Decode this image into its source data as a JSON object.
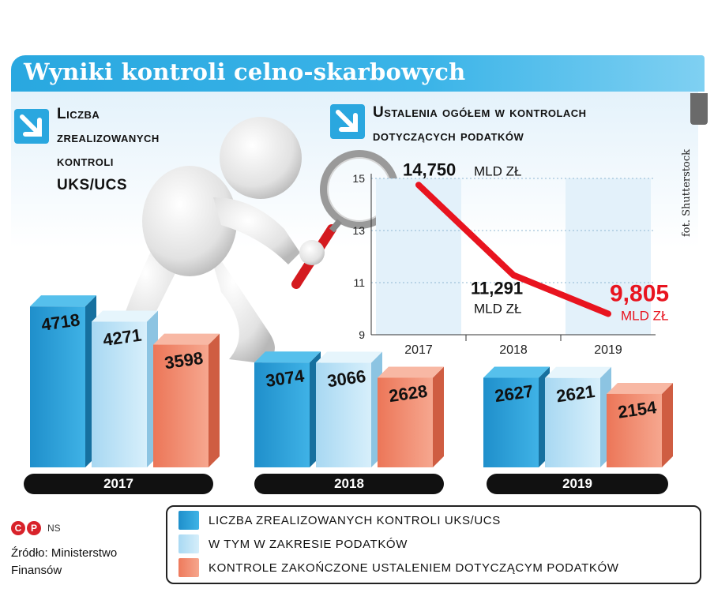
{
  "header": {
    "title": "Wyniki kontroli celno-skarbowych"
  },
  "photo_credit": "fot. Shutterstock",
  "left_panel": {
    "subtitle_lines": [
      "Liczba",
      "zrealizowanych",
      "kontroli",
      "UKS/UCS"
    ]
  },
  "right_panel": {
    "subtitle_lines": [
      "Ustalenia ogółem w kontrolach",
      "dotyczących podatków"
    ]
  },
  "colors": {
    "accent": "#29a8e0",
    "line": "#e8141f",
    "dark_blue": "#2a9fd6",
    "light_blue": "#bfe3f6",
    "salmon": "#f2876b"
  },
  "chart_data": [
    {
      "type": "bar",
      "categories": [
        "2017",
        "2018",
        "2019"
      ],
      "series": [
        {
          "name": "Liczba zrealizowanych kontroli UKS/UCS",
          "values": [
            4718,
            3074,
            2627
          ]
        },
        {
          "name": "W tym w zakresie podatków",
          "values": [
            4271,
            3066,
            2621
          ]
        },
        {
          "name": "Kontrole zakończone ustaleniem dotyczącym podatków",
          "values": [
            3598,
            2628,
            2154
          ]
        }
      ],
      "labels": [
        [
          "4718",
          "4271",
          "3598"
        ],
        [
          "3074",
          "3066",
          "2628"
        ],
        [
          "2627",
          "2621",
          "2154"
        ]
      ]
    },
    {
      "type": "line",
      "x": [
        "2017",
        "2018",
        "2019"
      ],
      "y": [
        14.75,
        11.291,
        9.805
      ],
      "y_ticks": [
        "15",
        "13",
        "11",
        "9"
      ],
      "ylim": [
        9,
        15
      ],
      "point_labels": [
        {
          "value": "14,750",
          "unit": "mld zł"
        },
        {
          "value": "11,291",
          "unit": "mld zł"
        },
        {
          "value": "9,805",
          "unit": "mld zł"
        }
      ]
    }
  ],
  "legend": {
    "items": [
      {
        "label": "Liczba zrealizowanych kontroli UKS/UCS"
      },
      {
        "label": "w tym w zakresie podatków"
      },
      {
        "label": "kontrole zakończone ustaleniem dotyczącym podatków"
      }
    ]
  },
  "footer": {
    "copyright_marks": [
      "C",
      "P"
    ],
    "author": "NS",
    "source": "Źródło: Ministerstwo Finansów"
  }
}
